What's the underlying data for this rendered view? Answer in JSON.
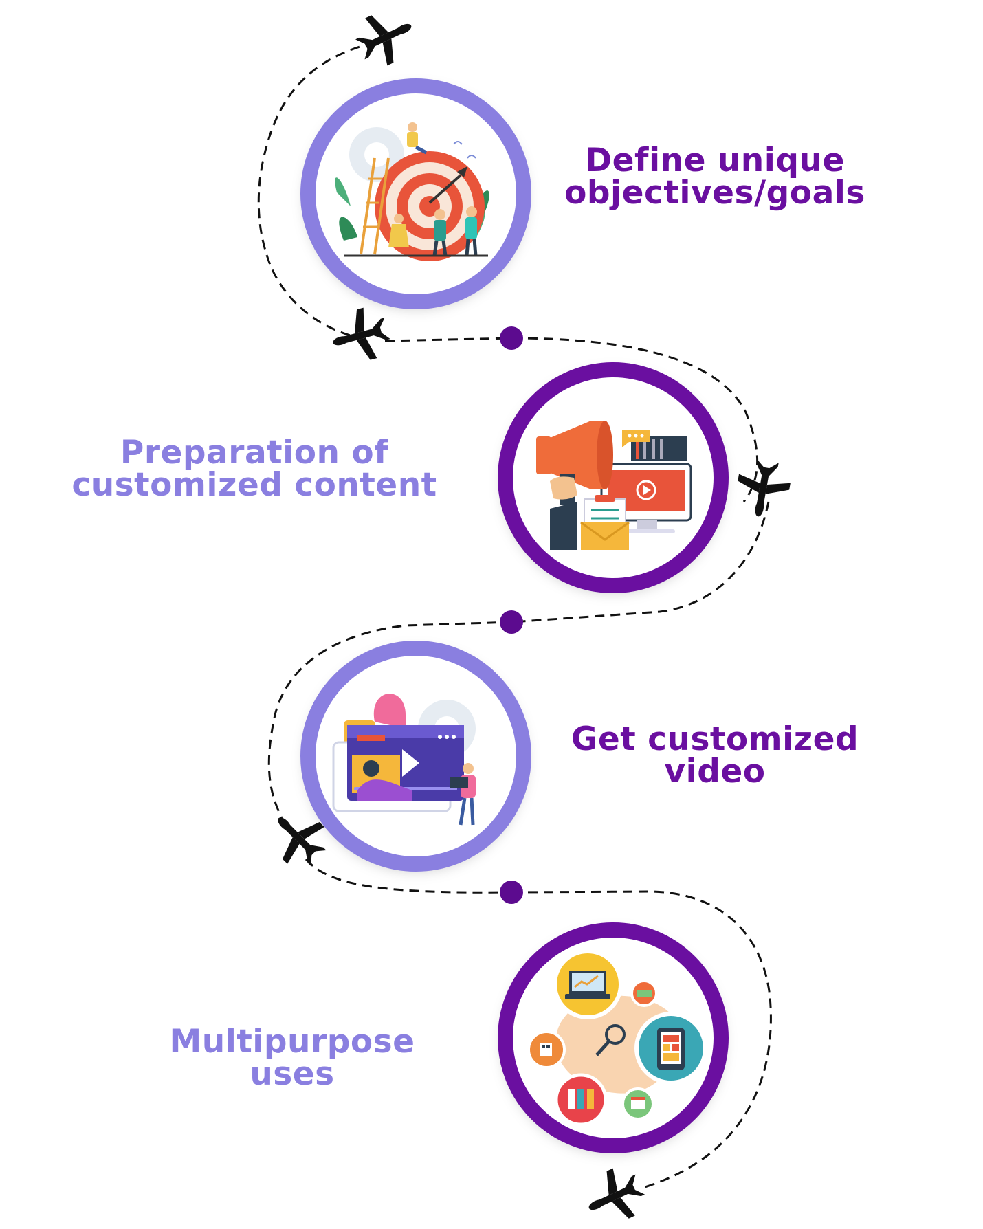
{
  "colors": {
    "dark_purple": "#6a0fa0",
    "light_purple": "#8a7fe0",
    "path": "#111111",
    "dot": "#5c0b8f"
  },
  "steps": [
    {
      "line1": "Define unique",
      "line2": "objectives/goals",
      "illustration": "target-goal-illustration",
      "text_color": "#6a0fa0",
      "ring_color": "#8a7fe0"
    },
    {
      "line1": "Preparation of",
      "line2": "customized content",
      "illustration": "megaphone-content-illustration",
      "text_color": "#8a7fe0",
      "ring_color": "#6a0fa0"
    },
    {
      "line1": "Get customized",
      "line2": "video",
      "illustration": "video-player-illustration",
      "text_color": "#6a0fa0",
      "ring_color": "#8a7fe0"
    },
    {
      "line1": "Multipurpose",
      "line2": "uses",
      "illustration": "multipurpose-devices-illustration",
      "text_color": "#8a7fe0",
      "ring_color": "#6a0fa0"
    }
  ],
  "icons": {
    "airplane": "airplane-icon",
    "dot": "path-dot"
  }
}
